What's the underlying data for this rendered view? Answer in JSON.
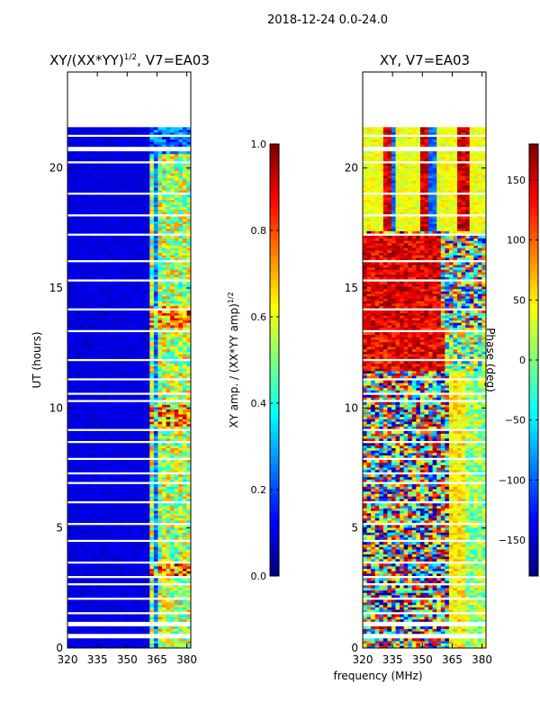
{
  "suptitle": "2018-12-24 0.0-24.0",
  "colors": {
    "jet": [
      "#00007f",
      "#0000ff",
      "#007fff",
      "#00ffff",
      "#7fff7f",
      "#ffff00",
      "#ff7f00",
      "#ff0000",
      "#7f0000"
    ],
    "background": "#ffffff",
    "axis": "#000000"
  },
  "chart_data": [
    {
      "type": "heatmap",
      "title_prefix": "XY/(XX*YY)",
      "title_exp": "1/2",
      "title_suffix": ", V7=EA03",
      "xlabel": "",
      "ylabel": "UT (hours)",
      "xlim": [
        320,
        382
      ],
      "ylim": [
        0,
        24
      ],
      "xticks": [
        320,
        335,
        350,
        365,
        380
      ],
      "yticks": [
        0,
        5,
        10,
        15,
        20
      ],
      "colorbar": {
        "label_prefix": "XY amp. / (XX*YY amp)",
        "label_exp": "1/2",
        "range": [
          0.0,
          1.0
        ],
        "ticks": [
          "0.0",
          "0.2",
          "0.4",
          "0.6",
          "0.8",
          "1.0"
        ],
        "tick_values": [
          0.0,
          0.2,
          0.4,
          0.6,
          0.8,
          1.0
        ]
      },
      "data_extent_hours": [
        0,
        21.7
      ],
      "gap_hours": [
        0.5,
        1.0,
        1.45,
        2.05,
        2.65,
        3.0,
        3.6,
        4.5,
        5.15,
        6.1,
        6.9,
        7.3,
        7.9,
        8.6,
        9.1,
        10.3,
        10.6,
        11.2,
        12.0,
        13.2,
        14.1,
        15.3,
        16.1,
        17.2,
        18.0,
        18.95,
        20.25,
        20.8,
        21.35
      ],
      "band_columns_mhz": [
        363,
        366,
        368,
        371,
        374,
        378,
        380
      ],
      "background_value": 0.07
    },
    {
      "type": "heatmap",
      "title": "XY, V7=EA03",
      "xlabel": "frequency (MHz)",
      "ylabel": "",
      "xlim": [
        320,
        382
      ],
      "ylim": [
        0,
        24
      ],
      "xticks": [
        320,
        335,
        350,
        365,
        380
      ],
      "yticks": [
        0,
        5,
        10,
        15,
        20
      ],
      "colorbar": {
        "label": "Phase (deg)",
        "range": [
          -180,
          180
        ],
        "ticks": [
          "−150",
          "−100",
          "−50",
          "0",
          "50",
          "100",
          "150"
        ],
        "tick_values": [
          -150,
          -100,
          -50,
          0,
          50,
          100,
          150
        ]
      },
      "data_extent_hours": [
        0,
        21.7
      ],
      "gap_hours": [
        0.5,
        1.0,
        1.45,
        2.05,
        2.65,
        3.0,
        3.6,
        4.5,
        5.15,
        6.1,
        6.9,
        7.3,
        7.9,
        8.6,
        9.1,
        10.3,
        10.6,
        11.2,
        12.0,
        13.2,
        14.1,
        15.3,
        16.1,
        17.2,
        18.0,
        18.95,
        20.25,
        20.8,
        21.35
      ]
    }
  ]
}
